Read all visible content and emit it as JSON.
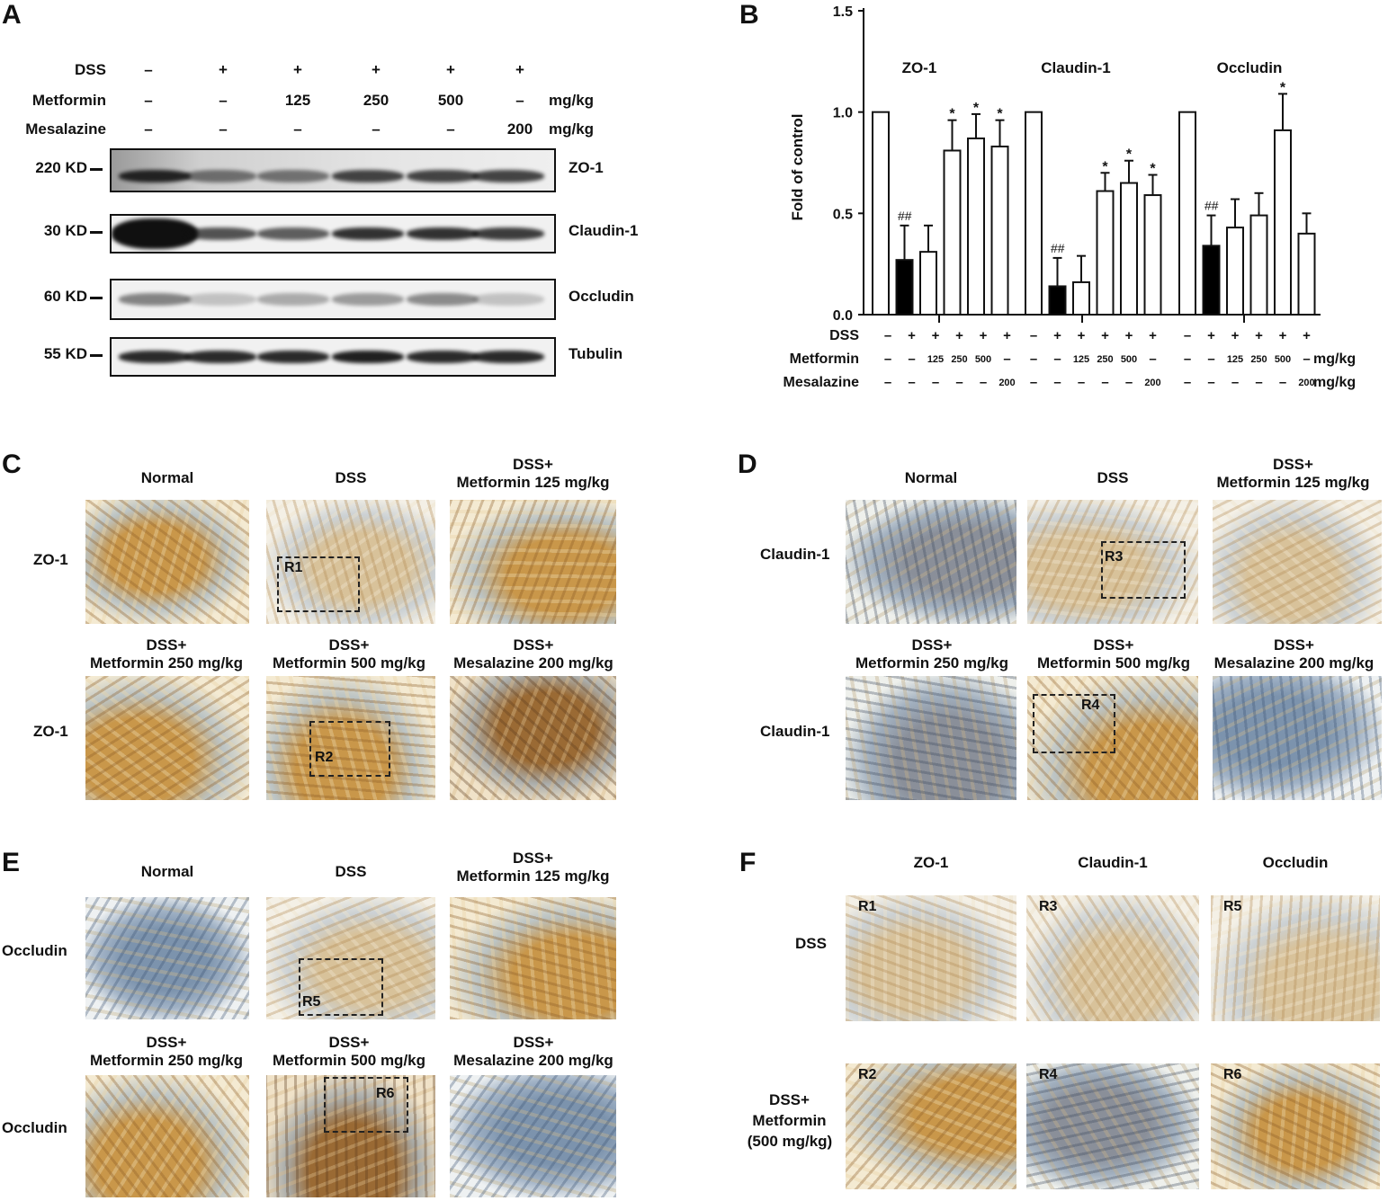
{
  "panels": {
    "A": "A",
    "B": "B",
    "C": "C",
    "D": "D",
    "E": "E",
    "F": "F"
  },
  "western": {
    "rows": [
      {
        "name": "DSS",
        "values": [
          "–",
          "+",
          "+",
          "+",
          "+",
          "+"
        ],
        "unit": ""
      },
      {
        "name": "Metformin",
        "values": [
          "–",
          "–",
          "125",
          "250",
          "500",
          "–"
        ],
        "unit": "mg/kg"
      },
      {
        "name": "Mesalazine",
        "values": [
          "–",
          "–",
          "–",
          "–",
          "–",
          "200"
        ],
        "unit": "mg/kg"
      }
    ],
    "blots": [
      {
        "marker": "220 KD",
        "protein": "ZO-1",
        "color": "#1a1a1a"
      },
      {
        "marker": "30 KD",
        "protein": "Claudin-1",
        "color": "#101010"
      },
      {
        "marker": "60 KD",
        "protein": "Occludin",
        "color": "#555555"
      },
      {
        "marker": "55 KD",
        "protein": "Tubulin",
        "color": "#151515"
      }
    ],
    "intensity": [
      [
        0.95,
        0.55,
        0.55,
        0.8,
        0.8,
        0.8
      ],
      [
        1.0,
        0.7,
        0.65,
        0.85,
        0.85,
        0.8
      ],
      [
        0.7,
        0.3,
        0.45,
        0.55,
        0.65,
        0.3
      ],
      [
        0.9,
        0.9,
        0.9,
        0.95,
        0.9,
        0.9
      ]
    ]
  },
  "chart_data": {
    "type": "bar",
    "ylabel": "Fold of control",
    "ylim": [
      0,
      1.5
    ],
    "yticks": [
      "0.0",
      "0.5",
      "1.0",
      "1.5"
    ],
    "groups": [
      {
        "name": "ZO-1",
        "values": [
          1.0,
          0.27,
          0.31,
          0.81,
          0.87,
          0.83
        ],
        "errors": [
          0,
          0.17,
          0.13,
          0.15,
          0.12,
          0.13
        ],
        "annotations": [
          "",
          "##",
          "",
          "*",
          "*",
          "*"
        ]
      },
      {
        "name": "Claudin-1",
        "values": [
          1.0,
          0.14,
          0.16,
          0.61,
          0.65,
          0.59
        ],
        "errors": [
          0,
          0.14,
          0.13,
          0.09,
          0.11,
          0.1
        ],
        "annotations": [
          "",
          "##",
          "",
          "*",
          "*",
          "*"
        ]
      },
      {
        "name": "Occludin",
        "values": [
          1.0,
          0.34,
          0.43,
          0.49,
          0.91,
          0.4
        ],
        "errors": [
          0,
          0.15,
          0.14,
          0.11,
          0.18,
          0.1
        ],
        "annotations": [
          "",
          "##",
          "",
          "",
          "*",
          ""
        ]
      }
    ],
    "filled_index": 1,
    "conditions": {
      "DSS": [
        "–",
        "+",
        "+",
        "+",
        "+",
        "+"
      ],
      "Metformin": [
        "–",
        "–",
        "125",
        "250",
        "500",
        "–"
      ],
      "Mesalazine": [
        "–",
        "–",
        "–",
        "–",
        "–",
        "200"
      ]
    },
    "unit": "mg/kg"
  },
  "ihc": {
    "titles": {
      "normal": "Normal",
      "dss": "DSS",
      "m125_a": "DSS+",
      "m125_b": "Metformin 125 mg/kg",
      "m250_a": "DSS+",
      "m250_b": "Metformin 250 mg/kg",
      "m500_a": "DSS+",
      "m500_b": "Metformin 500 mg/kg",
      "mes_a": "DSS+",
      "mes_b": "Mesalazine 200 mg/kg"
    },
    "stains": {
      "C": "ZO-1",
      "D": "Claudin-1",
      "E": "Occludin"
    },
    "rois": {
      "C1": "R1",
      "C2": "R2",
      "D1": "R3",
      "D2": "R4",
      "E1": "R5",
      "E2": "R6"
    }
  },
  "panelF": {
    "cols": [
      "ZO-1",
      "Claudin-1",
      "Occludin"
    ],
    "row1": "DSS",
    "row2_a": "DSS+",
    "row2_b": "Metformin",
    "row2_c": "(500 mg/kg)",
    "labels": [
      "R1",
      "R3",
      "R5",
      "R2",
      "R4",
      "R6"
    ]
  }
}
